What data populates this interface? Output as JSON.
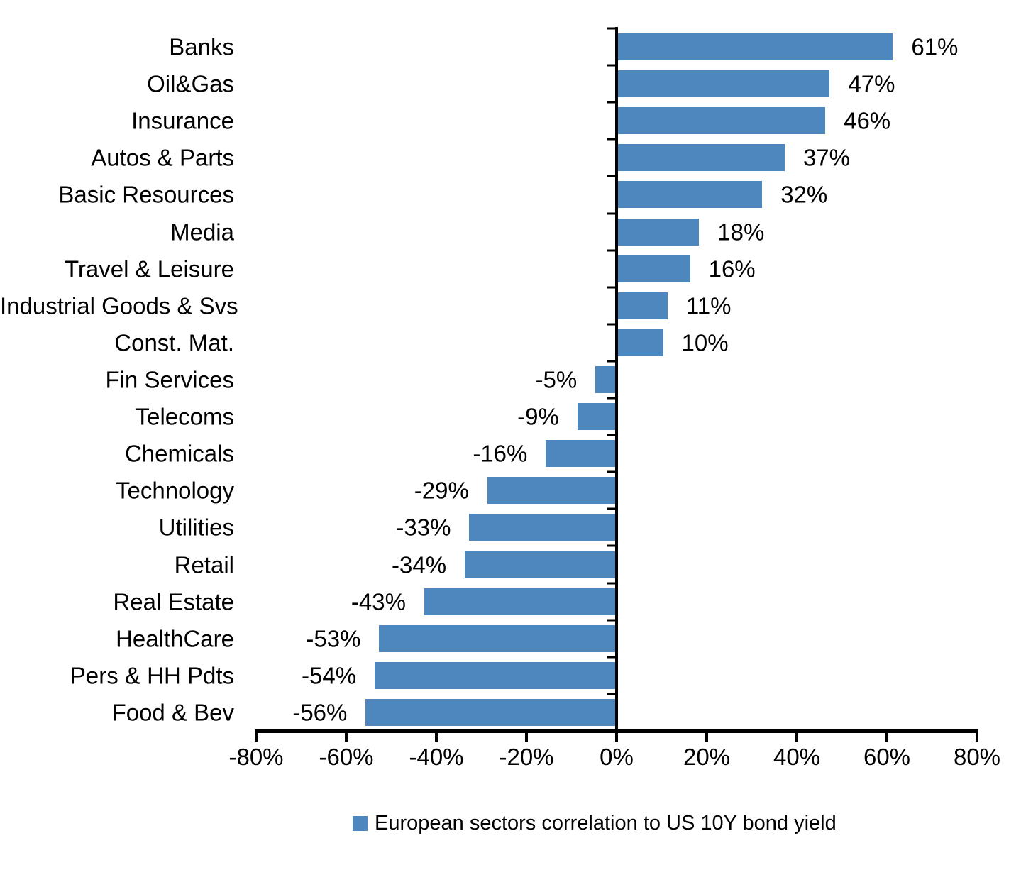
{
  "chart_data": {
    "type": "bar",
    "orientation": "horizontal",
    "title": "",
    "xlabel": "",
    "ylabel": "",
    "categories": [
      "Banks",
      "Oil&Gas",
      "Insurance",
      "Autos & Parts",
      "Basic Resources",
      "Media",
      "Travel & Leisure",
      "Industrial Goods & Svs",
      "Const. Mat.",
      "Fin Services",
      "Telecoms",
      "Chemicals",
      "Technology",
      "Utilities",
      "Retail",
      "Real Estate",
      "HealthCare",
      "Pers & HH Pdts",
      "Food & Bev"
    ],
    "values": [
      61,
      47,
      46,
      37,
      32,
      18,
      16,
      11,
      10,
      -5,
      -9,
      -16,
      -29,
      -33,
      -34,
      -43,
      -53,
      -54,
      -56
    ],
    "value_labels": [
      "61%",
      "47%",
      "46%",
      "37%",
      "32%",
      "18%",
      "16%",
      "11%",
      "10%",
      "-5%",
      "-9%",
      "-16%",
      "-29%",
      "-33%",
      "-34%",
      "-43%",
      "-53%",
      "-54%",
      "-56%"
    ],
    "xlim": [
      -80,
      80
    ],
    "x_ticks": [
      -80,
      -60,
      -40,
      -20,
      0,
      20,
      40,
      60,
      80
    ],
    "x_tick_labels": [
      "-80%",
      "-60%",
      "-40%",
      "-20%",
      "0%",
      "20%",
      "40%",
      "60%",
      "80%"
    ],
    "grid": false,
    "legend_position": "bottom",
    "legend": "European sectors correlation to US 10Y bond yield",
    "bar_color": "#4e86be",
    "axis_color": "#000000",
    "text_color": "#000000"
  }
}
